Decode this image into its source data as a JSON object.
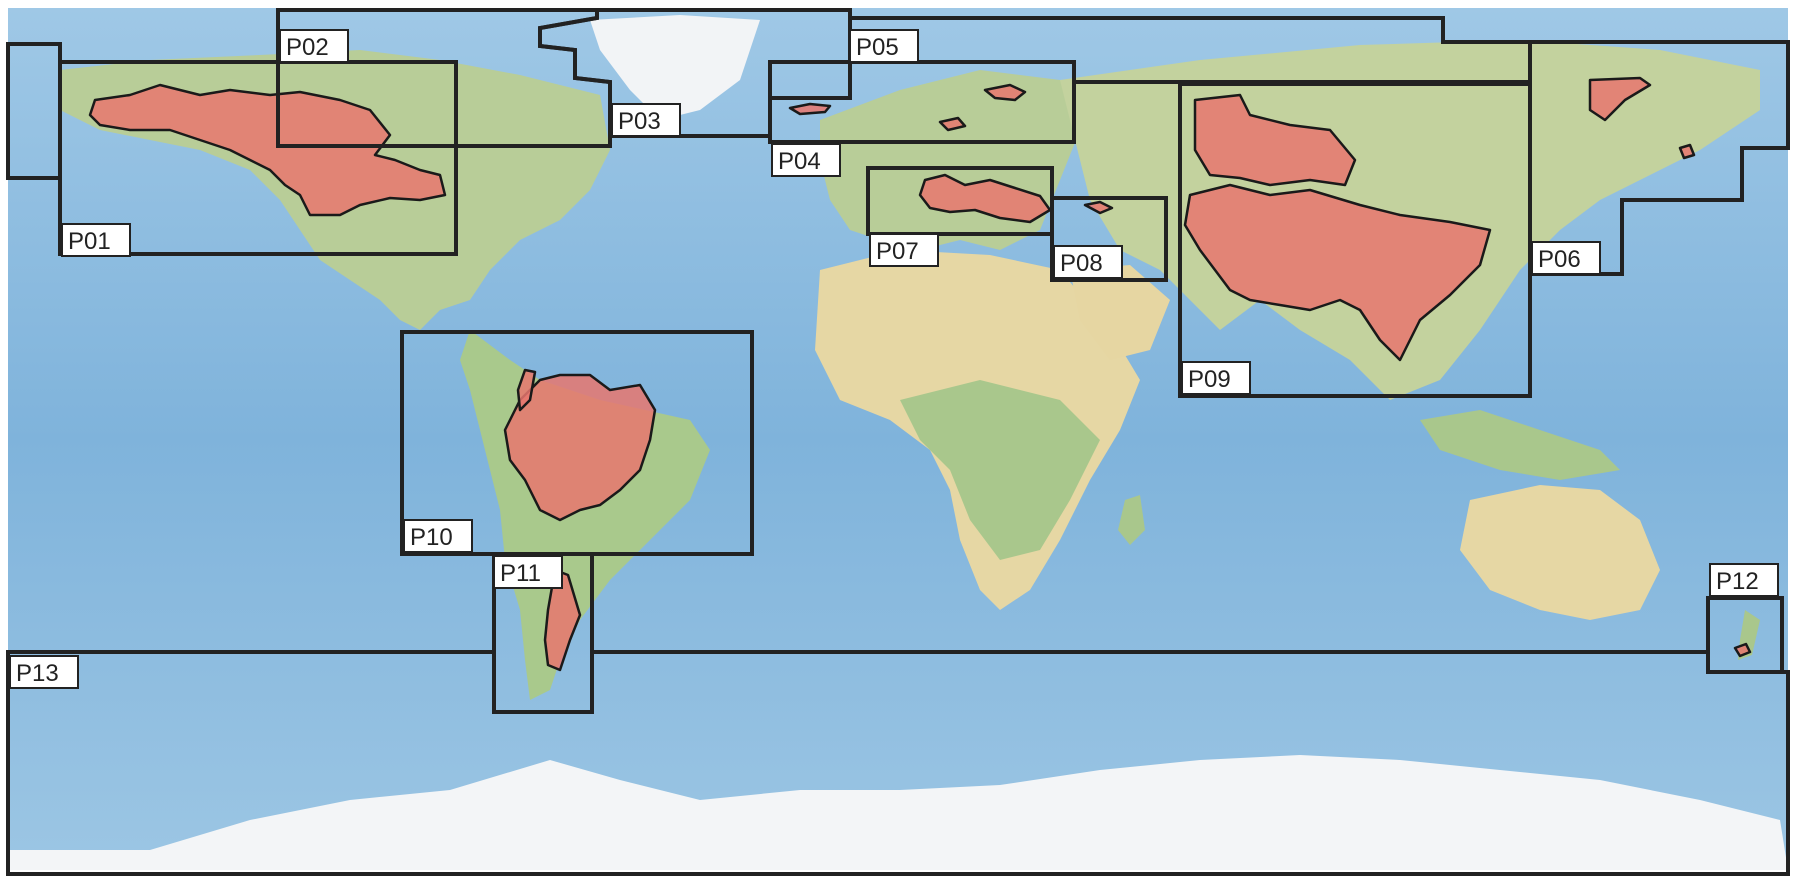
{
  "map": {
    "projection": "equirectangular world map",
    "colors": {
      "ocean": "#8fbfe0",
      "ocean_deep": "#6aa3cf",
      "land_green": "#b9cf96",
      "land_desert": "#e9d9a8",
      "ice": "#f4f6f8",
      "basin_fill": "#e8776e",
      "outline": "#222222"
    }
  },
  "regions": [
    {
      "id": "P01",
      "label": "P01"
    },
    {
      "id": "P02",
      "label": "P02"
    },
    {
      "id": "P03",
      "label": "P03"
    },
    {
      "id": "P04",
      "label": "P04"
    },
    {
      "id": "P05",
      "label": "P05"
    },
    {
      "id": "P06",
      "label": "P06"
    },
    {
      "id": "P07",
      "label": "P07"
    },
    {
      "id": "P08",
      "label": "P08"
    },
    {
      "id": "P09",
      "label": "P09"
    },
    {
      "id": "P10",
      "label": "P10"
    },
    {
      "id": "P11",
      "label": "P11"
    },
    {
      "id": "P12",
      "label": "P12"
    },
    {
      "id": "P13",
      "label": "P13"
    }
  ]
}
